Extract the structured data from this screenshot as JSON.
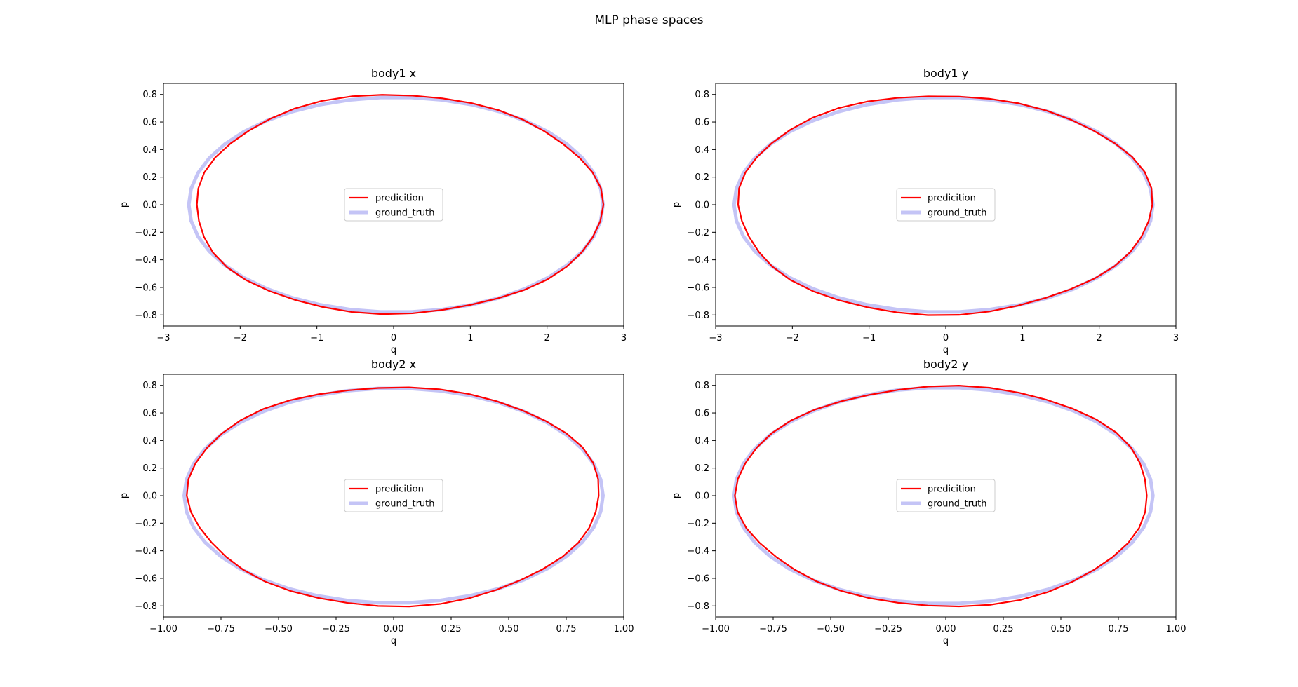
{
  "figure": {
    "title": "MLP phase spaces"
  },
  "colors": {
    "prediction": "#ff0000",
    "ground_truth": "#c4c4f6",
    "axes": "#000000"
  },
  "chart_data": [
    {
      "type": "line",
      "title": "body1 x",
      "xlabel": "q",
      "ylabel": "p",
      "xlim": [
        -3,
        3
      ],
      "ylim": [
        -0.88,
        0.88
      ],
      "xticks": [
        -3,
        -2,
        -1,
        0,
        1,
        2,
        3
      ],
      "xtick_labels": [
        "−3",
        "−2",
        "−1",
        "0",
        "1",
        "2",
        "3"
      ],
      "yticks": [
        -0.8,
        -0.6,
        -0.4,
        -0.2,
        0.0,
        0.2,
        0.4,
        0.6,
        0.8
      ],
      "ytick_labels": [
        "−0.8",
        "−0.6",
        "−0.4",
        "−0.2",
        "0.0",
        "0.2",
        "0.4",
        "0.6",
        "0.8"
      ],
      "legend_position": "center",
      "series": [
        {
          "name": "predicition",
          "role": "prediction",
          "cx": 0.05,
          "rx": 2.65,
          "ry": 0.795
        },
        {
          "name": "ground_truth",
          "role": "ground_truth",
          "cx": 0.03,
          "rx": 2.7,
          "ry": 0.78
        }
      ]
    },
    {
      "type": "line",
      "title": "body1 y",
      "xlabel": "q",
      "ylabel": "p",
      "xlim": [
        -3,
        3
      ],
      "ylim": [
        -0.88,
        0.88
      ],
      "xticks": [
        -3,
        -2,
        -1,
        0,
        1,
        2,
        3
      ],
      "xtick_labels": [
        "−3",
        "−2",
        "−1",
        "0",
        "1",
        "2",
        "3"
      ],
      "yticks": [
        -0.8,
        -0.6,
        -0.4,
        -0.2,
        0.0,
        0.2,
        0.4,
        0.6,
        0.8
      ],
      "ytick_labels": [
        "−0.8",
        "−0.6",
        "−0.4",
        "−0.2",
        "0.0",
        "0.2",
        "0.4",
        "0.6",
        "0.8"
      ],
      "legend_position": "center",
      "series": [
        {
          "name": "predicition",
          "role": "prediction",
          "cx": -0.03,
          "rx": 2.7,
          "ry": 0.795
        },
        {
          "name": "ground_truth",
          "role": "ground_truth",
          "cx": -0.03,
          "rx": 2.73,
          "ry": 0.78
        }
      ]
    },
    {
      "type": "line",
      "title": "body2 x",
      "xlabel": "q",
      "ylabel": "p",
      "xlim": [
        -1.0,
        1.0
      ],
      "ylim": [
        -0.88,
        0.88
      ],
      "xticks": [
        -1.0,
        -0.75,
        -0.5,
        -0.25,
        0.0,
        0.25,
        0.5,
        0.75,
        1.0
      ],
      "xtick_labels": [
        "−1.00",
        "−0.75",
        "−0.50",
        "−0.25",
        "0.00",
        "0.25",
        "0.50",
        "0.75",
        "1.00"
      ],
      "yticks": [
        -0.8,
        -0.6,
        -0.4,
        -0.2,
        0.0,
        0.2,
        0.4,
        0.6,
        0.8
      ],
      "ytick_labels": [
        "−0.8",
        "−0.6",
        "−0.4",
        "−0.2",
        "0.0",
        "0.2",
        "0.4",
        "0.6",
        "0.8"
      ],
      "legend_position": "center",
      "series": [
        {
          "name": "predicition",
          "role": "prediction",
          "cx": 0.0,
          "rx": 0.895,
          "ry": 0.795
        },
        {
          "name": "ground_truth",
          "role": "ground_truth",
          "cx": 0.0,
          "rx": 0.91,
          "ry": 0.78
        }
      ]
    },
    {
      "type": "line",
      "title": "body2 y",
      "xlabel": "q",
      "ylabel": "p",
      "xlim": [
        -1.0,
        1.0
      ],
      "ylim": [
        -0.88,
        0.88
      ],
      "xticks": [
        -1.0,
        -0.75,
        -0.5,
        -0.25,
        0.0,
        0.25,
        0.5,
        0.75,
        1.0
      ],
      "xtick_labels": [
        "−1.00",
        "−0.75",
        "−0.50",
        "−0.25",
        "0.00",
        "0.25",
        "0.50",
        "0.75",
        "1.00"
      ],
      "yticks": [
        -0.8,
        -0.6,
        -0.4,
        -0.2,
        0.0,
        0.2,
        0.4,
        0.6,
        0.8
      ],
      "ytick_labels": [
        "−0.8",
        "−0.6",
        "−0.4",
        "−0.2",
        "0.0",
        "0.2",
        "0.4",
        "0.6",
        "0.8"
      ],
      "legend_position": "center",
      "series": [
        {
          "name": "predicition",
          "role": "prediction",
          "cx": -0.01,
          "rx": 0.895,
          "ry": 0.8
        },
        {
          "name": "ground_truth",
          "role": "ground_truth",
          "cx": -0.01,
          "rx": 0.91,
          "ry": 0.785
        }
      ]
    }
  ]
}
